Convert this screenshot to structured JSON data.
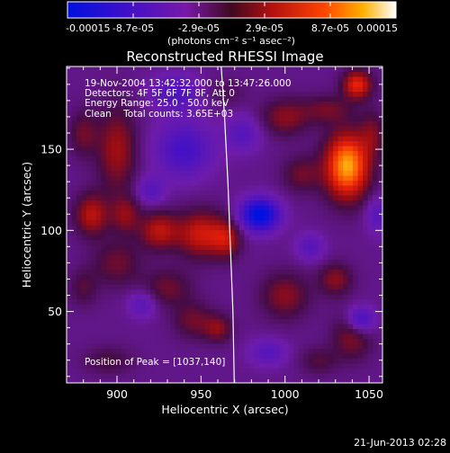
{
  "chart_data": {
    "type": "heatmap",
    "title": "Reconstructed RHESSI Image",
    "xlabel": "Heliocentric X (arcsec)",
    "ylabel": "Heliocentric Y (arcsec)",
    "xlim": [
      870,
      1058
    ],
    "ylim": [
      6,
      201
    ],
    "x_ticks": [
      900,
      950,
      1000,
      1050
    ],
    "y_ticks": [
      50,
      100,
      150
    ],
    "colorbar": {
      "ticks": [
        "-0.00015",
        "-8.7e-05",
        "-2.9e-05",
        "2.9e-05",
        "8.7e-05",
        "0.00015"
      ],
      "range": [
        -0.00015,
        0.00015
      ],
      "unit_text": "(photons cm⁻² s⁻¹ asec⁻²)"
    },
    "annotations": [
      "19-Nov-2004 13:42:32.000 to 13:47:26.000",
      "Detectors: 4F 5F 6F 7F 8F, Att 0",
      "Energy Range: 25.0 - 50.0 keV",
      "Clean    Total counts: 3.65E+03"
    ],
    "peak_label": "Position of Peak = [1037,140]",
    "peak": [
      1037,
      140
    ],
    "sources": [
      {
        "x": 1037,
        "y": 140,
        "sx": 9,
        "sy": 14,
        "v": 0.00015
      },
      {
        "x": 1043,
        "y": 190,
        "sx": 6,
        "sy": 6,
        "v": 9.5e-05
      },
      {
        "x": 1052,
        "y": 160,
        "sx": 5,
        "sy": 10,
        "v": 4e-05
      },
      {
        "x": 1025,
        "y": 175,
        "sx": 10,
        "sy": 6,
        "v": 4e-05
      },
      {
        "x": 880,
        "y": 160,
        "sx": 6,
        "sy": 10,
        "v": 4e-05
      },
      {
        "x": 900,
        "y": 150,
        "sx": 8,
        "sy": 18,
        "v": 6e-05
      },
      {
        "x": 885,
        "y": 110,
        "sx": 7,
        "sy": 9,
        "v": 7e-05
      },
      {
        "x": 905,
        "y": 110,
        "sx": 6,
        "sy": 8,
        "v": 5e-05
      },
      {
        "x": 925,
        "y": 100,
        "sx": 8,
        "sy": 8,
        "v": 7e-05
      },
      {
        "x": 950,
        "y": 98,
        "sx": 10,
        "sy": 10,
        "v": 8e-05
      },
      {
        "x": 965,
        "y": 95,
        "sx": 6,
        "sy": 8,
        "v": 6e-05
      },
      {
        "x": 900,
        "y": 80,
        "sx": 10,
        "sy": 10,
        "v": 4e-05
      },
      {
        "x": 880,
        "y": 65,
        "sx": 6,
        "sy": 8,
        "v": 3e-05
      },
      {
        "x": 930,
        "y": 65,
        "sx": 10,
        "sy": 8,
        "v": 4e-05
      },
      {
        "x": 945,
        "y": 45,
        "sx": 8,
        "sy": 8,
        "v": 4e-05
      },
      {
        "x": 960,
        "y": 40,
        "sx": 6,
        "sy": 6,
        "v": 5e-05
      },
      {
        "x": 895,
        "y": 20,
        "sx": 10,
        "sy": 6,
        "v": 3e-05
      },
      {
        "x": 1000,
        "y": 60,
        "sx": 10,
        "sy": 10,
        "v": 5e-05
      },
      {
        "x": 1030,
        "y": 70,
        "sx": 7,
        "sy": 7,
        "v": 5e-05
      },
      {
        "x": 1040,
        "y": 35,
        "sx": 8,
        "sy": 10,
        "v": 5e-05
      },
      {
        "x": 1020,
        "y": 20,
        "sx": 8,
        "sy": 6,
        "v": 3e-05
      },
      {
        "x": 1010,
        "y": 135,
        "sx": 8,
        "sy": 8,
        "v": 4e-05
      },
      {
        "x": 1000,
        "y": 170,
        "sx": 10,
        "sy": 8,
        "v": 5e-05
      },
      {
        "x": 965,
        "y": 185,
        "sx": 8,
        "sy": 6,
        "v": 2e-05
      },
      {
        "x": 985,
        "y": 110,
        "sx": 8,
        "sy": 7,
        "v": -0.00013
      },
      {
        "x": 940,
        "y": 150,
        "sx": 12,
        "sy": 12,
        "v": -6e-05
      },
      {
        "x": 935,
        "y": 185,
        "sx": 10,
        "sy": 8,
        "v": -5e-05
      },
      {
        "x": 920,
        "y": 125,
        "sx": 6,
        "sy": 6,
        "v": -4e-05
      },
      {
        "x": 1045,
        "y": 45,
        "sx": 6,
        "sy": 6,
        "v": -7e-05
      },
      {
        "x": 990,
        "y": 25,
        "sx": 8,
        "sy": 6,
        "v": -4e-05
      },
      {
        "x": 915,
        "y": 55,
        "sx": 6,
        "sy": 6,
        "v": -4e-05
      },
      {
        "x": 1015,
        "y": 90,
        "sx": 6,
        "sy": 6,
        "v": -4e-05
      },
      {
        "x": 975,
        "y": 160,
        "sx": 8,
        "sy": 8,
        "v": -4e-05
      },
      {
        "x": 1055,
        "y": 110,
        "sx": 5,
        "sy": 8,
        "v": -4e-05
      }
    ],
    "limb": [
      [
        962,
        201
      ],
      [
        964,
        170
      ],
      [
        966,
        130
      ],
      [
        967.5,
        90
      ],
      [
        969,
        50
      ],
      [
        969.8,
        6
      ]
    ]
  },
  "footer": {
    "date": "21-Jun-2013 02:28"
  }
}
